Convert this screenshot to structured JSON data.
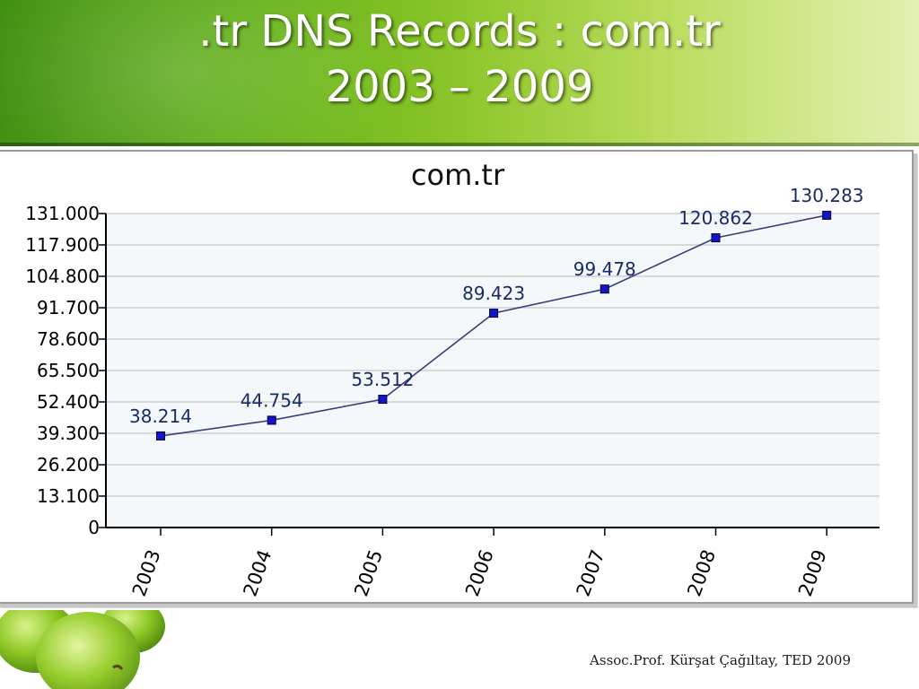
{
  "slide": {
    "title_line1": ".tr DNS Records : com.tr",
    "title_line2": "2003 – 2009",
    "footer": "Assoc.Prof. Kürşat Çağıltay, TED 2009"
  },
  "colors": {
    "line": "#3a3f7a",
    "marker": "#1414c8",
    "grid": "#d9d9d9",
    "plot_bg": "#f4f8fb",
    "label_text": "#1a2a66"
  },
  "chart_data": {
    "type": "line",
    "title": "com.tr",
    "xlabel": "",
    "ylabel": "",
    "categories": [
      "2003",
      "2004",
      "2005",
      "2006",
      "2007",
      "2008",
      "2009"
    ],
    "series": [
      {
        "values": [
          38214,
          44754,
          53512,
          89423,
          99478,
          120862,
          130283
        ],
        "labels": [
          "38.214",
          "44.754",
          "53.512",
          "89.423",
          "99.478",
          "120.862",
          "130.283"
        ]
      }
    ],
    "ylim": [
      0,
      131000
    ],
    "yticks": [
      0,
      13100,
      26200,
      39300,
      52400,
      65500,
      78600,
      91700,
      104800,
      117900,
      131000
    ],
    "ytick_labels": [
      "0",
      "13.100",
      "26.200",
      "39.300",
      "52.400",
      "65.500",
      "78.600",
      "91.700",
      "104.800",
      "117.900",
      "131.000"
    ],
    "grid": true,
    "legend": "none",
    "marker": "square"
  }
}
